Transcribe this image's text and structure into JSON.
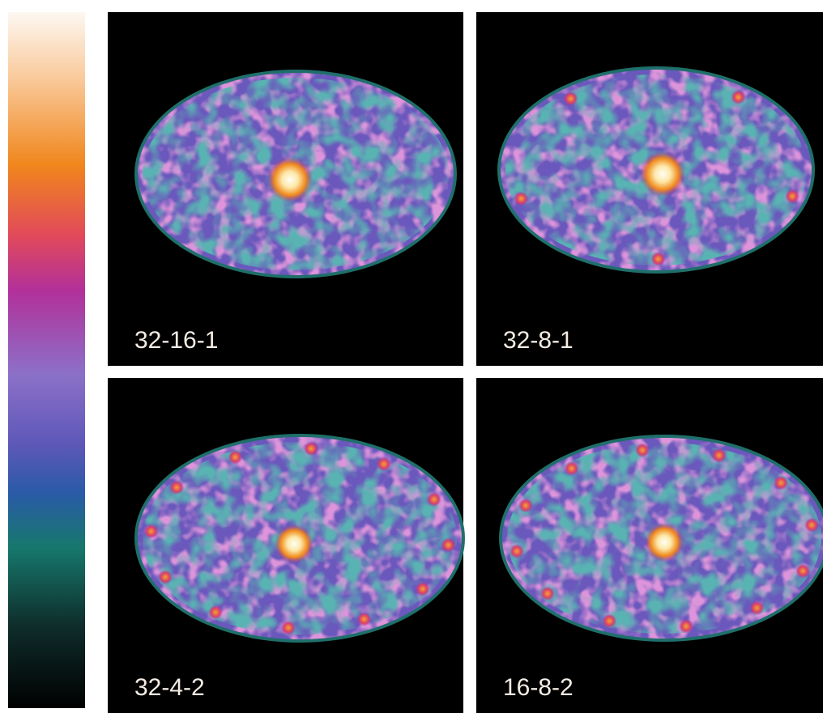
{
  "panels": [
    {
      "label": "32-16-1"
    },
    {
      "label": "32-8-1"
    },
    {
      "label": "32-4-2"
    },
    {
      "label": "16-8-2"
    }
  ]
}
